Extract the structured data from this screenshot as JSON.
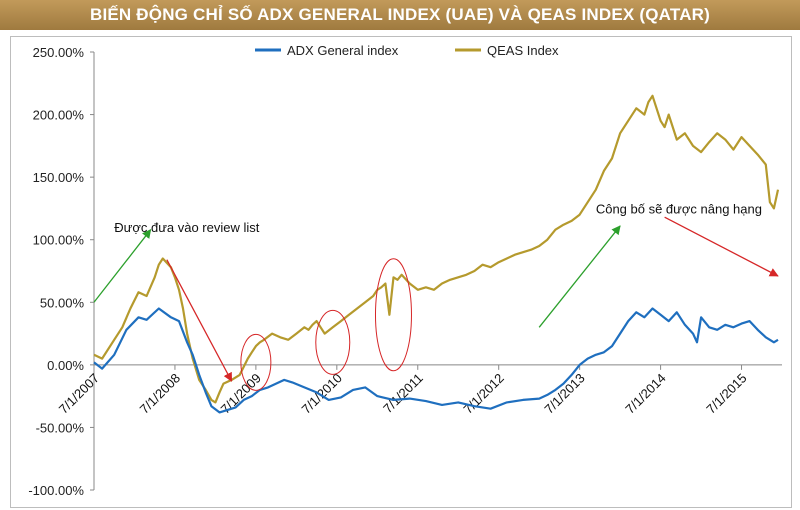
{
  "chart_data": {
    "type": "line",
    "title": "BIẾN ĐỘNG CHỈ SỐ ADX GENERAL INDEX (UAE) VÀ QEAS INDEX (QATAR)",
    "xlabel": "",
    "ylabel": "",
    "ylim": [
      -100,
      250
    ],
    "yticks": [
      -100,
      -50,
      0,
      50,
      100,
      150,
      200,
      250
    ],
    "ytick_labels": [
      "-100.00%",
      "-50.00%",
      "0.00%",
      "50.00%",
      "100.00%",
      "150.00%",
      "200.00%",
      "250.00%"
    ],
    "x_range": [
      2007.5,
      2016.0
    ],
    "xticks": [
      2007.5,
      2008.5,
      2009.5,
      2010.5,
      2011.5,
      2012.5,
      2013.5,
      2014.5,
      2015.5
    ],
    "xtick_labels": [
      "7/1/2007",
      "7/1/2008",
      "7/1/2009",
      "7/1/2010",
      "7/1/2011",
      "7/1/2012",
      "7/1/2013",
      "7/1/2014",
      "7/1/2015"
    ],
    "grid": false,
    "legend_position": "top-center",
    "series": [
      {
        "name": "ADX General index",
        "color": "#1f6fbf",
        "x": [
          2007.5,
          2007.6,
          2007.75,
          2007.9,
          2008.05,
          2008.15,
          2008.3,
          2008.45,
          2008.55,
          2008.65,
          2008.72,
          2008.8,
          2008.88,
          2008.95,
          2009.05,
          2009.15,
          2009.25,
          2009.35,
          2009.45,
          2009.55,
          2009.65,
          2009.75,
          2009.85,
          2009.95,
          2010.1,
          2010.25,
          2010.4,
          2010.55,
          2010.7,
          2010.85,
          2011.0,
          2011.2,
          2011.4,
          2011.6,
          2011.8,
          2012.0,
          2012.2,
          2012.4,
          2012.6,
          2012.8,
          2013.0,
          2013.1,
          2013.2,
          2013.3,
          2013.4,
          2013.5,
          2013.6,
          2013.7,
          2013.8,
          2013.9,
          2014.0,
          2014.1,
          2014.2,
          2014.3,
          2014.4,
          2014.5,
          2014.6,
          2014.7,
          2014.8,
          2014.9,
          2014.95,
          2015.0,
          2015.1,
          2015.2,
          2015.3,
          2015.4,
          2015.5,
          2015.6,
          2015.7,
          2015.8,
          2015.9,
          2015.95
        ],
        "values": [
          2,
          -3,
          8,
          28,
          38,
          36,
          45,
          38,
          35,
          18,
          8,
          -8,
          -22,
          -33,
          -38,
          -36,
          -34,
          -28,
          -25,
          -20,
          -18,
          -15,
          -12,
          -14,
          -18,
          -22,
          -28,
          -26,
          -20,
          -18,
          -25,
          -28,
          -27,
          -29,
          -32,
          -30,
          -33,
          -35,
          -30,
          -28,
          -27,
          -24,
          -20,
          -15,
          -8,
          0,
          5,
          8,
          10,
          15,
          25,
          35,
          42,
          38,
          45,
          40,
          35,
          42,
          32,
          25,
          18,
          38,
          30,
          28,
          32,
          30,
          33,
          35,
          28,
          22,
          18,
          20
        ]
      },
      {
        "name": "QEAS Index",
        "color": "#b59a2d",
        "x": [
          2007.5,
          2007.6,
          2007.75,
          2007.85,
          2007.95,
          2008.05,
          2008.15,
          2008.25,
          2008.3,
          2008.35,
          2008.45,
          2008.5,
          2008.55,
          2008.6,
          2008.65,
          2008.72,
          2008.8,
          2008.88,
          2008.95,
          2009.0,
          2009.05,
          2009.1,
          2009.2,
          2009.3,
          2009.4,
          2009.45,
          2009.5,
          2009.55,
          2009.6,
          2009.7,
          2009.8,
          2009.9,
          2010.0,
          2010.1,
          2010.15,
          2010.2,
          2010.25,
          2010.3,
          2010.35,
          2010.45,
          2010.55,
          2010.65,
          2010.75,
          2010.85,
          2010.95,
          2011.0,
          2011.05,
          2011.1,
          2011.15,
          2011.2,
          2011.25,
          2011.3,
          2011.4,
          2011.5,
          2011.6,
          2011.7,
          2011.8,
          2011.9,
          2012.0,
          2012.1,
          2012.2,
          2012.3,
          2012.4,
          2012.5,
          2012.6,
          2012.7,
          2012.8,
          2012.9,
          2013.0,
          2013.1,
          2013.2,
          2013.3,
          2013.4,
          2013.5,
          2013.6,
          2013.7,
          2013.8,
          2013.9,
          2014.0,
          2014.1,
          2014.2,
          2014.3,
          2014.35,
          2014.4,
          2014.5,
          2014.55,
          2014.6,
          2014.7,
          2014.8,
          2014.9,
          2015.0,
          2015.1,
          2015.2,
          2015.3,
          2015.4,
          2015.5,
          2015.6,
          2015.7,
          2015.8,
          2015.85,
          2015.9,
          2015.95
        ],
        "values": [
          8,
          5,
          20,
          30,
          45,
          58,
          55,
          70,
          80,
          85,
          78,
          70,
          60,
          45,
          25,
          5,
          -12,
          -20,
          -28,
          -30,
          -22,
          -15,
          -12,
          -8,
          5,
          10,
          15,
          18,
          20,
          25,
          22,
          20,
          25,
          30,
          28,
          32,
          35,
          30,
          25,
          30,
          35,
          40,
          45,
          50,
          55,
          60,
          62,
          65,
          40,
          70,
          68,
          72,
          65,
          60,
          62,
          60,
          65,
          68,
          70,
          72,
          75,
          80,
          78,
          82,
          85,
          88,
          90,
          92,
          95,
          100,
          108,
          112,
          115,
          120,
          130,
          140,
          155,
          165,
          185,
          195,
          205,
          200,
          210,
          215,
          195,
          190,
          200,
          180,
          185,
          175,
          170,
          178,
          185,
          180,
          172,
          182,
          175,
          168,
          160,
          130,
          125,
          140
        ]
      }
    ],
    "annotations": [
      {
        "text": "Được đưa vào review list"
      },
      {
        "text": "Công bố sẽ được nâng hạng"
      }
    ]
  },
  "colors": {
    "banner": "#a8834a",
    "adx": "#1f6fbf",
    "qeas": "#b59a2d",
    "arrow_up": "#2ca02c",
    "arrow_down": "#d62728",
    "ellipse": "#d62728"
  }
}
